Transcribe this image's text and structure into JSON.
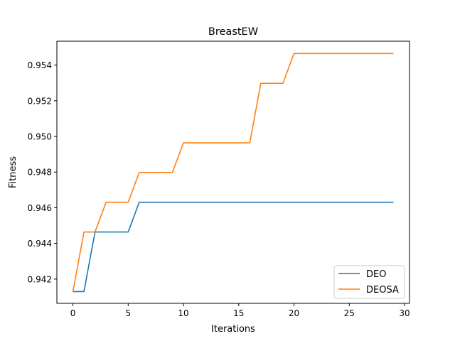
{
  "chart_data": {
    "type": "line",
    "title": "BreastEW",
    "xlabel": "Iterations",
    "ylabel": "Fitness",
    "xlim": [
      -1.45,
      30.45
    ],
    "ylim": [
      0.94064,
      0.95534
    ],
    "x_ticks": [
      0,
      5,
      10,
      15,
      20,
      25,
      30
    ],
    "y_ticks": [
      0.942,
      0.944,
      0.946,
      0.948,
      0.95,
      0.952,
      0.954
    ],
    "x_tick_labels": [
      "0",
      "5",
      "10",
      "15",
      "20",
      "25",
      "30"
    ],
    "y_tick_labels": [
      "0.942",
      "0.944",
      "0.946",
      "0.948",
      "0.950",
      "0.952",
      "0.954"
    ],
    "grid": false,
    "legend_position": "lower-right",
    "x": [
      0,
      1,
      2,
      3,
      4,
      5,
      6,
      7,
      8,
      9,
      10,
      11,
      12,
      13,
      14,
      15,
      16,
      17,
      18,
      19,
      20,
      21,
      22,
      23,
      24,
      25,
      26,
      27,
      28,
      29
    ],
    "series": [
      {
        "name": "DEO",
        "color": "#1f77b4",
        "values": [
          0.9413,
          0.9413,
          0.94464,
          0.94464,
          0.94464,
          0.94464,
          0.94631,
          0.94631,
          0.94631,
          0.94631,
          0.94631,
          0.94631,
          0.94631,
          0.94631,
          0.94631,
          0.94631,
          0.94631,
          0.94631,
          0.94631,
          0.94631,
          0.94631,
          0.94631,
          0.94631,
          0.94631,
          0.94631,
          0.94631,
          0.94631,
          0.94631,
          0.94631,
          0.94631
        ]
      },
      {
        "name": "DEOSA",
        "color": "#ff7f0e",
        "values": [
          0.9413,
          0.94464,
          0.94464,
          0.94631,
          0.94631,
          0.94631,
          0.94798,
          0.94798,
          0.94798,
          0.94798,
          0.94964,
          0.94964,
          0.94964,
          0.94964,
          0.94964,
          0.94964,
          0.94964,
          0.95298,
          0.95298,
          0.95298,
          0.95465,
          0.95465,
          0.95465,
          0.95465,
          0.95465,
          0.95465,
          0.95465,
          0.95465,
          0.95465,
          0.95465
        ]
      }
    ]
  }
}
